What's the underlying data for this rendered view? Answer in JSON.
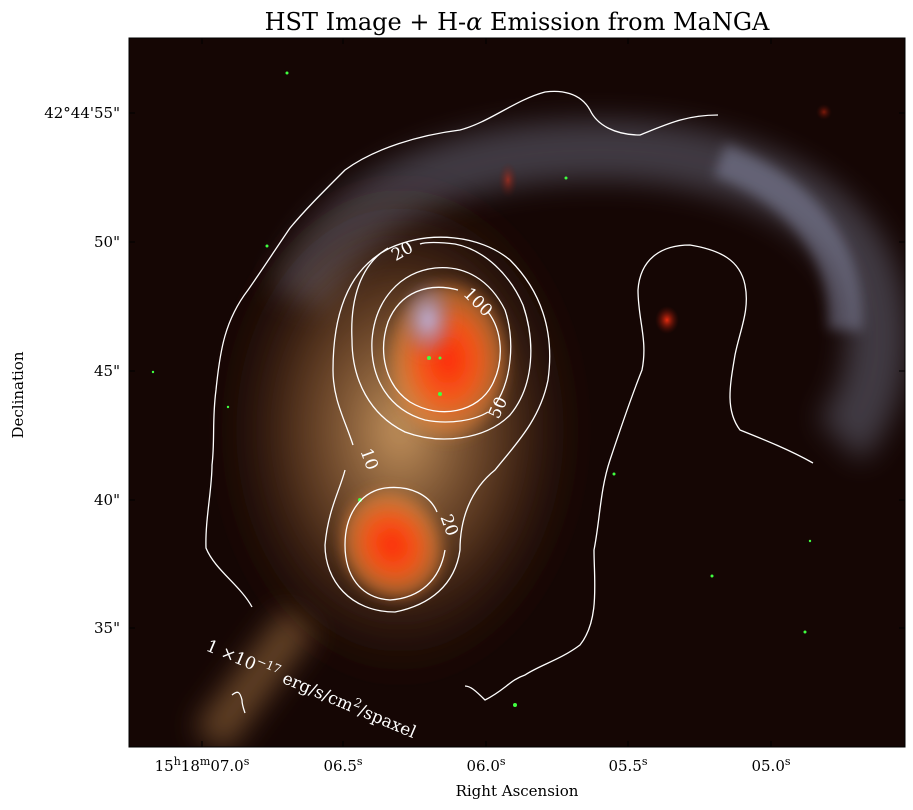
{
  "title_prefix": "HST Image + H-",
  "title_symbol": "α",
  "title_suffix": " Emission from MaNGA",
  "x_axis": {
    "label": "Right Ascension",
    "ticks": [
      {
        "h": "15",
        "m": "18",
        "s": "07.0"
      },
      {
        "s": "06.5"
      },
      {
        "s": "06.0"
      },
      {
        "s": "05.5"
      },
      {
        "s": "05.0"
      }
    ],
    "unit_h": "h",
    "unit_m": "m",
    "unit_s": "s"
  },
  "y_axis": {
    "label": "Declination",
    "ticks": [
      "42°44'55\"",
      "50\"",
      "45\"",
      "40\"",
      "35\""
    ]
  },
  "contour_labels": [
    "20",
    "100",
    "50",
    "10",
    "20"
  ],
  "contour_units": {
    "prefix": "1 ×10",
    "exponent": "−17",
    "middle": " erg/s/cm",
    "power": "2",
    "suffix": "/spaxel"
  },
  "colors": {
    "background": "#150604",
    "contour": "#ffffff",
    "arm": "#8f9ab8",
    "nucleus": "#ff3a10",
    "halo": "#d89a58"
  }
}
